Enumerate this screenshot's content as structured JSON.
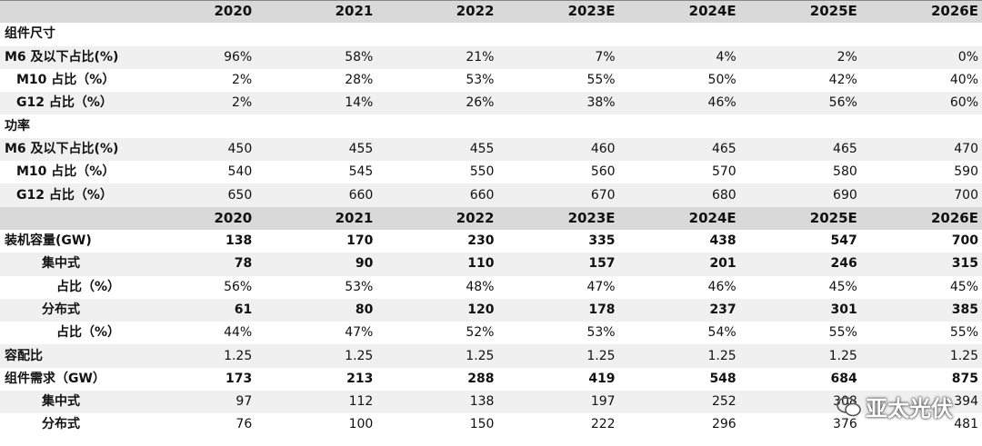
{
  "years": [
    "2020",
    "2021",
    "2022",
    "2023E",
    "2024E",
    "2025E",
    "2026E"
  ],
  "section1": {
    "title": "组件尺寸",
    "rows": [
      {
        "label": "M6 及以下占比(%)",
        "values": [
          "96%",
          "58%",
          "21%",
          "7%",
          "4%",
          "2%",
          "0%"
        ]
      },
      {
        "label": "M10 占比（%）",
        "values": [
          "2%",
          "28%",
          "53%",
          "55%",
          "50%",
          "42%",
          "40%"
        ]
      },
      {
        "label": "G12 占比（%）",
        "values": [
          "2%",
          "14%",
          "26%",
          "38%",
          "46%",
          "56%",
          "60%"
        ]
      }
    ]
  },
  "section2": {
    "title": "功率",
    "rows": [
      {
        "label": "M6 及以下占比(%)",
        "values": [
          "450",
          "455",
          "455",
          "460",
          "465",
          "465",
          "470"
        ]
      },
      {
        "label": "M10 占比（%）",
        "values": [
          "540",
          "545",
          "550",
          "560",
          "570",
          "580",
          "590"
        ]
      },
      {
        "label": "G12 占比（%）",
        "values": [
          "650",
          "660",
          "660",
          "670",
          "680",
          "690",
          "700"
        ]
      }
    ]
  },
  "section3": {
    "rows": [
      {
        "label": "装机容量(GW)",
        "values": [
          "138",
          "170",
          "230",
          "335",
          "438",
          "547",
          "700"
        ]
      },
      {
        "label": "集中式",
        "values": [
          "78",
          "90",
          "110",
          "157",
          "201",
          "246",
          "315"
        ]
      },
      {
        "label": "占比（%）",
        "values": [
          "56%",
          "53%",
          "48%",
          "47%",
          "46%",
          "45%",
          "45%"
        ]
      },
      {
        "label": "分布式",
        "values": [
          "61",
          "80",
          "120",
          "178",
          "237",
          "301",
          "385"
        ]
      },
      {
        "label": "占比（%）",
        "values": [
          "44%",
          "47%",
          "52%",
          "53%",
          "54%",
          "55%",
          "55%"
        ]
      },
      {
        "label": "容配比",
        "values": [
          "1.25",
          "1.25",
          "1.25",
          "1.25",
          "1.25",
          "1.25",
          "1.25"
        ]
      },
      {
        "label": "组件需求（GW）",
        "values": [
          "173",
          "213",
          "288",
          "419",
          "548",
          "684",
          "875"
        ]
      },
      {
        "label": "集中式",
        "values": [
          "97",
          "112",
          "138",
          "197",
          "252",
          "308",
          "394"
        ]
      },
      {
        "label": "分布式",
        "values": [
          "76",
          "100",
          "150",
          "222",
          "296",
          "376",
          "481"
        ]
      }
    ]
  },
  "watermark": {
    "text": "亚太光伏",
    "icon": "wechat-icon"
  }
}
